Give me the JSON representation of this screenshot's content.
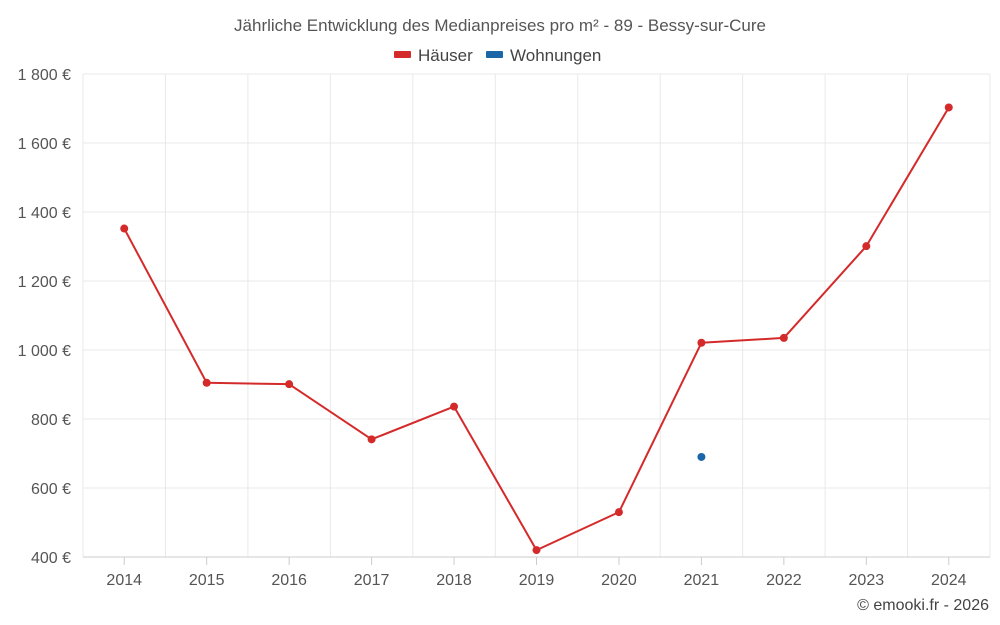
{
  "chart_data": {
    "type": "line",
    "title": "Jährliche Entwicklung des Medianpreises pro m² - 89 - Bessy-sur-Cure",
    "categories": [
      "2014",
      "2015",
      "2016",
      "2017",
      "2018",
      "2019",
      "2020",
      "2021",
      "2022",
      "2023",
      "2024"
    ],
    "series": [
      {
        "name": "Häuser",
        "color": "#d42a2a",
        "values": [
          1352,
          905,
          901,
          741,
          836,
          420,
          530,
          1021,
          1035,
          1301,
          1703
        ]
      },
      {
        "name": "Wohnungen",
        "color": "#1a66a6",
        "values": [
          null,
          null,
          null,
          null,
          null,
          null,
          null,
          690,
          null,
          null,
          null
        ]
      }
    ],
    "ylim": [
      400,
      1800
    ],
    "yticks": [
      400,
      600,
      800,
      1000,
      1200,
      1400,
      1600,
      1800
    ],
    "ytick_labels": [
      "400 €",
      "600 €",
      "800 €",
      "1 000 €",
      "1 200 €",
      "1 400 €",
      "1 600 €",
      "1 800 €"
    ],
    "xlabel": "",
    "ylabel": "",
    "grid": true,
    "legend_position": "top-center"
  },
  "credit": "© emooki.fr - 2026"
}
